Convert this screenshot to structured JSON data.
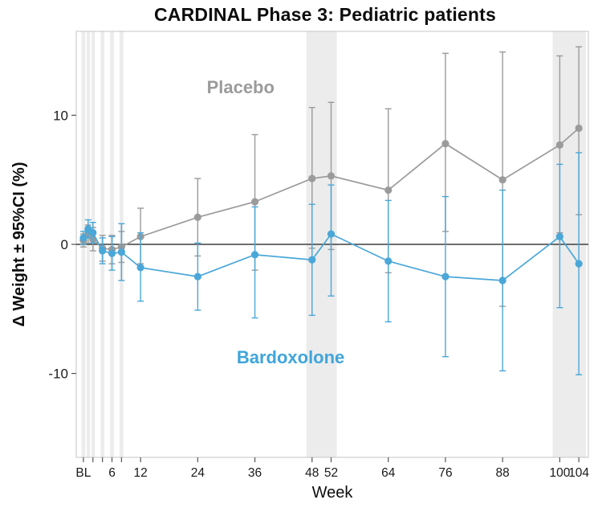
{
  "figure": {
    "title": "CARDINAL Phase 3: Pediatric patients"
  },
  "chart_data": {
    "type": "line",
    "title": "CARDINAL Phase 3: Pediatric patients",
    "xlabel": "Week",
    "ylabel": "Δ Weight ± 95%CI (%)",
    "xlim": [
      -1.5,
      106
    ],
    "ylim": [
      -16.5,
      16.5
    ],
    "grid": false,
    "legend_position": "none",
    "yticks": [
      -10,
      0,
      10
    ],
    "xticks": [
      {
        "week": 0,
        "label": "BL"
      },
      {
        "week": 2,
        "label": ""
      },
      {
        "week": 4,
        "label": ""
      },
      {
        "week": 6,
        "label": "6"
      },
      {
        "week": 8,
        "label": ""
      },
      {
        "week": 12,
        "label": "12"
      },
      {
        "week": 24,
        "label": "24"
      },
      {
        "week": 36,
        "label": "36"
      },
      {
        "week": 48,
        "label": "48"
      },
      {
        "week": 52,
        "label": "52"
      },
      {
        "week": 64,
        "label": "64"
      },
      {
        "week": 76,
        "label": "76"
      },
      {
        "week": 88,
        "label": "88"
      },
      {
        "week": 100,
        "label": "100"
      },
      {
        "week": 104,
        "label": "104"
      }
    ],
    "zero_line": 0,
    "highlight_bands": [
      {
        "from": -0.4,
        "to": 0.4
      },
      {
        "from": 0.7,
        "to": 1.4
      },
      {
        "from": 1.7,
        "to": 2.4
      },
      {
        "from": 3.6,
        "to": 4.4
      },
      {
        "from": 5.6,
        "to": 6.4
      },
      {
        "from": 7.6,
        "to": 8.4
      },
      {
        "from": 46.8,
        "to": 53.2
      },
      {
        "from": 98.5,
        "to": 105.5
      }
    ],
    "series": [
      {
        "name": "Placebo",
        "color": "#9b9b9b",
        "weeks": [
          0,
          1,
          2,
          4,
          6,
          8,
          12,
          24,
          36,
          48,
          52,
          64,
          76,
          88,
          100,
          104
        ],
        "values": [
          0.3,
          0.8,
          0.4,
          -0.3,
          -0.4,
          -0.2,
          0.6,
          2.1,
          3.3,
          5.1,
          5.3,
          4.2,
          7.8,
          5.0,
          7.7,
          9.0
        ],
        "ci_low": [
          -0.2,
          0.1,
          -0.5,
          -1.3,
          -1.5,
          -1.4,
          -1.5,
          -0.9,
          -2.0,
          -0.3,
          -0.4,
          -2.2,
          1.0,
          -4.8,
          0.9,
          2.3
        ],
        "ci_high": [
          0.8,
          1.5,
          1.3,
          0.7,
          0.7,
          1.0,
          2.8,
          5.1,
          8.5,
          10.6,
          11.0,
          10.5,
          14.8,
          14.9,
          14.6,
          15.3
        ]
      },
      {
        "name": "Bardoxolone",
        "color": "#4aa7d8",
        "weeks": [
          0,
          1,
          2,
          4,
          6,
          8,
          12,
          24,
          36,
          48,
          52,
          64,
          76,
          88,
          100,
          104
        ],
        "values": [
          0.5,
          1.2,
          0.9,
          -0.5,
          -0.7,
          -0.6,
          -1.8,
          -2.5,
          -0.8,
          -1.2,
          0.8,
          -1.3,
          -2.5,
          -2.8,
          0.6,
          -1.5
        ],
        "ci_low": [
          0.0,
          0.5,
          0.1,
          -1.5,
          -2.0,
          -2.8,
          -4.4,
          -5.1,
          -5.7,
          -5.5,
          -4.0,
          -6.0,
          -8.7,
          -9.8,
          -4.9,
          -10.1
        ],
        "ci_high": [
          1.0,
          1.9,
          1.7,
          0.5,
          0.6,
          1.6,
          0.9,
          0.1,
          2.9,
          3.1,
          4.6,
          3.4,
          3.7,
          4.2,
          6.2,
          7.1
        ]
      }
    ],
    "annotations": [
      {
        "text": "Placebo",
        "week": 33,
        "value": 11.7,
        "color": "#9b9b9b"
      },
      {
        "text": "Bardoxolone",
        "week": 43.5,
        "value": -9.2,
        "color": "#3fa5dc"
      }
    ]
  }
}
